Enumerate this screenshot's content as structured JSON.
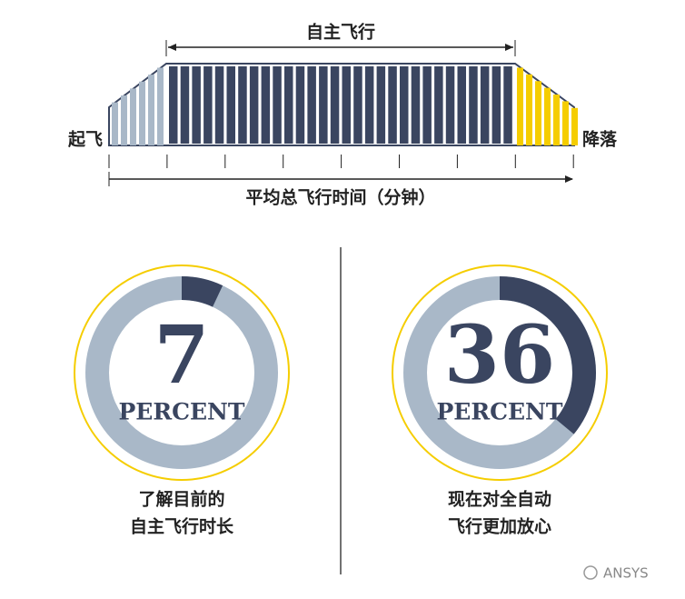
{
  "flight": {
    "title": "自主飞行",
    "takeoff": "起飞",
    "landing": "降落",
    "axis_label": "平均总飞行时间（分钟）"
  },
  "donuts": [
    {
      "value": 7,
      "unit": "PERCENT",
      "caption_lines": [
        "了解目前的",
        "自主飞行时长"
      ]
    },
    {
      "value": 36,
      "unit": "PERCENT",
      "caption_lines": [
        "现在对全自动",
        "飞行更加放心"
      ]
    }
  ],
  "watermark": "ANSYS"
}
